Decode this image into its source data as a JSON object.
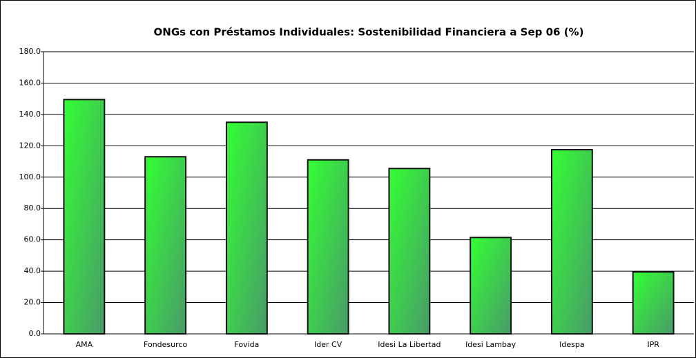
{
  "chart_data": {
    "type": "bar",
    "title": "ONGs con Préstamos Individuales:  Sostenibilidad Financiera a Sep 06 (%)",
    "categories": [
      "AMA",
      "Fondesurco",
      "Fovida",
      "Ider CV",
      "Idesi La Libertad",
      "Idesi Lambay",
      "Idespa",
      "IPR"
    ],
    "values": [
      149.5,
      113,
      135,
      111,
      105.5,
      61.5,
      117.5,
      39.5
    ],
    "color": "#33ff33",
    "ylim": [
      0,
      180
    ],
    "yticks": [
      {
        "value": 0,
        "label": "0.0"
      },
      {
        "value": 20,
        "label": "20.0"
      },
      {
        "value": 40,
        "label": "40.0"
      },
      {
        "value": 60,
        "label": "60.0"
      },
      {
        "value": 80,
        "label": "80.0"
      },
      {
        "value": 100,
        "label": "100.0"
      },
      {
        "value": 120,
        "label": "120.0"
      },
      {
        "value": 140,
        "label": "140.0"
      },
      {
        "value": 160,
        "label": "160.0"
      },
      {
        "value": 180,
        "label": "180.0"
      }
    ],
    "grid": true
  }
}
